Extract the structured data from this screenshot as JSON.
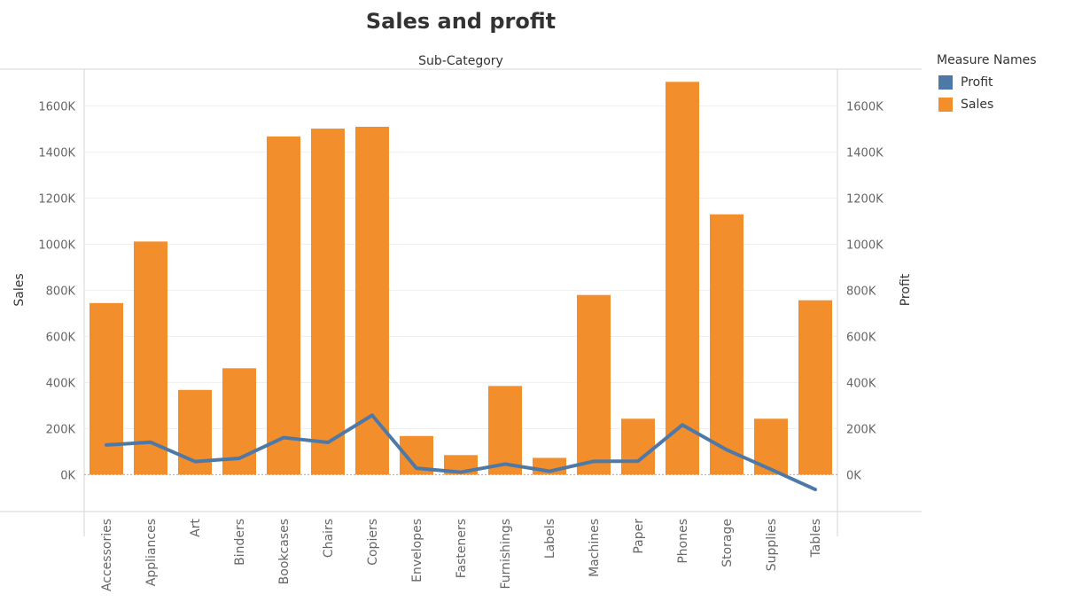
{
  "chart_data": {
    "type": "bar",
    "title": "Sales and profit",
    "column_header": "Sub-Category",
    "ylabel": "Sales",
    "ylabel_right": "Profit",
    "ylim": [
      -160000,
      1760000
    ],
    "yticks": [
      0,
      200000,
      400000,
      600000,
      800000,
      1000000,
      1200000,
      1400000,
      1600000
    ],
    "ytick_labels": [
      "0K",
      "200K",
      "400K",
      "600K",
      "800K",
      "1000K",
      "1200K",
      "1400K",
      "1600K"
    ],
    "grid": true,
    "legend_position": "right",
    "categories": [
      "Accessories",
      "Appliances",
      "Art",
      "Binders",
      "Bookcases",
      "Chairs",
      "Copiers",
      "Envelopes",
      "Fasteners",
      "Furnishings",
      "Labels",
      "Machines",
      "Paper",
      "Phones",
      "Storage",
      "Supplies",
      "Tables"
    ],
    "series": [
      {
        "name": "Sales",
        "type": "bar",
        "color": "#f28e2b",
        "values": [
          745000,
          1012000,
          368000,
          462000,
          1468000,
          1502000,
          1510000,
          168000,
          85000,
          385000,
          73000,
          780000,
          243000,
          1705000,
          1130000,
          243000,
          757000
        ]
      },
      {
        "name": "Profit",
        "type": "line",
        "color": "#4e79a7",
        "values": [
          129000,
          141000,
          57000,
          71000,
          161000,
          140000,
          258000,
          28000,
          11000,
          46000,
          15000,
          58000,
          59000,
          216000,
          108000,
          23000,
          -64000
        ]
      }
    ]
  },
  "legend": {
    "title": "Measure Names",
    "items": [
      {
        "label": "Profit",
        "color": "#4e79a7"
      },
      {
        "label": "Sales",
        "color": "#f28e2b"
      }
    ]
  }
}
